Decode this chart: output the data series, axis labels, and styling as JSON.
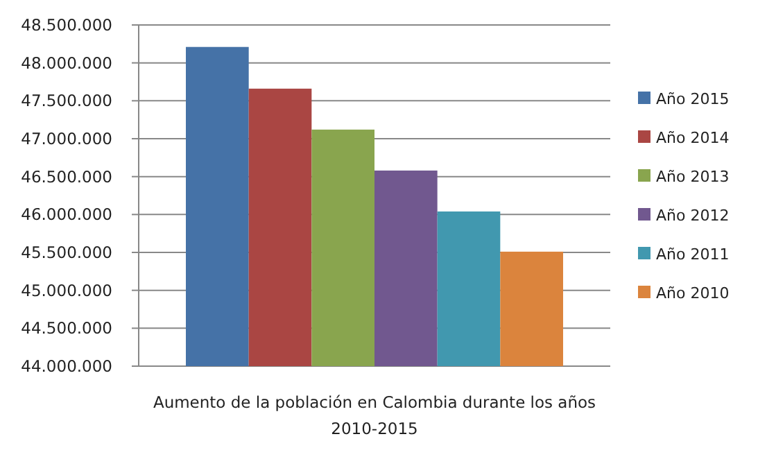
{
  "chart_data": {
    "type": "bar",
    "categories": [
      null
    ],
    "xlabel": "Aumento de la población en Calombia durante los años 2010-2015",
    "series": [
      {
        "name": "Año 2015",
        "color": "#4572a7",
        "values": [
          48210000
        ]
      },
      {
        "name": "Año 2014",
        "color": "#aa4643",
        "values": [
          47660000
        ]
      },
      {
        "name": "Año 2013",
        "color": "#89a54e",
        "values": [
          47120000
        ]
      },
      {
        "name": "Año 2012",
        "color": "#71588f",
        "values": [
          46580000
        ]
      },
      {
        "name": "Año 2011",
        "color": "#4198af",
        "values": [
          46040000
        ]
      },
      {
        "name": "Año 2010",
        "color": "#db843d",
        "values": [
          45510000
        ]
      }
    ],
    "ylim": [
      44000000,
      48500000
    ],
    "yticks": [
      {
        "value": 44000000,
        "label": "44.000.000"
      },
      {
        "value": 44500000,
        "label": "44.500.000"
      },
      {
        "value": 45000000,
        "label": "45.000.000"
      },
      {
        "value": 45500000,
        "label": "45.500.000"
      },
      {
        "value": 46000000,
        "label": "46.000.000"
      },
      {
        "value": 46500000,
        "label": "46.500.000"
      },
      {
        "value": 47000000,
        "label": "47.000.000"
      },
      {
        "value": 47500000,
        "label": "47.500.000"
      },
      {
        "value": 48000000,
        "label": "48.000.000"
      },
      {
        "value": 48500000,
        "label": "48.500.000"
      }
    ],
    "grid": "y",
    "legend": "right"
  }
}
